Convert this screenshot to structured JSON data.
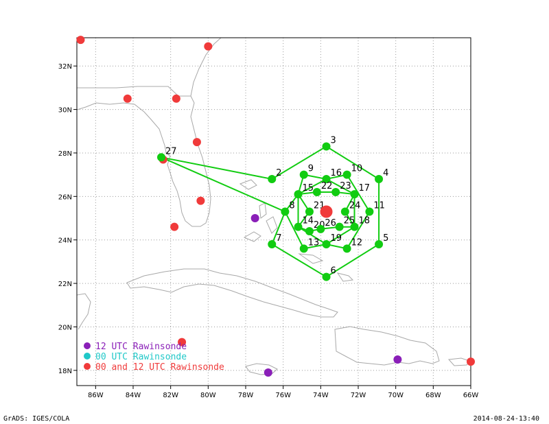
{
  "footer": {
    "left": "GrADS: IGES/COLA",
    "right": "2014-08-24-13:40"
  },
  "colors": {
    "track": "#11cc11",
    "raob_both": "#f03a3a",
    "raob_12": "#8a1fb8",
    "raob_00": "#20c8c8",
    "coast": "#a8a8a8",
    "grid": "#9a9a9a"
  },
  "map": {
    "lon_range": [
      -87.0,
      -66.0
    ],
    "lat_range": [
      17.3,
      33.3
    ],
    "x_ticks": [
      {
        "lon": -86,
        "label": "86W"
      },
      {
        "lon": -84,
        "label": "84W"
      },
      {
        "lon": -82,
        "label": "82W"
      },
      {
        "lon": -80,
        "label": "80W"
      },
      {
        "lon": -78,
        "label": "78W"
      },
      {
        "lon": -76,
        "label": "76W"
      },
      {
        "lon": -74,
        "label": "74W"
      },
      {
        "lon": -72,
        "label": "72W"
      },
      {
        "lon": -70,
        "label": "70W"
      },
      {
        "lon": -68,
        "label": "68W"
      },
      {
        "lon": -66,
        "label": "66W"
      }
    ],
    "y_ticks": [
      {
        "lat": 18,
        "label": "18N"
      },
      {
        "lat": 20,
        "label": "20N"
      },
      {
        "lat": 22,
        "label": "22N"
      },
      {
        "lat": 24,
        "label": "24N"
      },
      {
        "lat": 26,
        "label": "26N"
      },
      {
        "lat": 28,
        "label": "28N"
      },
      {
        "lat": 30,
        "label": "30N"
      },
      {
        "lat": 32,
        "label": "32N"
      }
    ]
  },
  "legend": [
    {
      "label": "12 UTC Rawinsonde",
      "color": "#8a1fb8"
    },
    {
      "label": "00 UTC Rawinsonde",
      "color": "#20c8c8"
    },
    {
      "label": "00 and 12 UTC Rawinsonde",
      "color": "#f03a3a"
    }
  ],
  "storm_center": {
    "lon": -73.7,
    "lat": 25.3
  },
  "drop_points": [
    {
      "id": "2",
      "lon": -76.6,
      "lat": 26.8
    },
    {
      "id": "3",
      "lon": -73.7,
      "lat": 28.3
    },
    {
      "id": "4",
      "lon": -70.9,
      "lat": 26.8
    },
    {
      "id": "5",
      "lon": -70.9,
      "lat": 23.8
    },
    {
      "id": "6",
      "lon": -73.7,
      "lat": 22.3
    },
    {
      "id": "7",
      "lon": -76.6,
      "lat": 23.8
    },
    {
      "id": "8",
      "lon": -75.9,
      "lat": 25.3
    },
    {
      "id": "9",
      "lon": -74.9,
      "lat": 27.0
    },
    {
      "id": "10",
      "lon": -72.6,
      "lat": 27.0
    },
    {
      "id": "11",
      "lon": -71.4,
      "lat": 25.3
    },
    {
      "id": "12",
      "lon": -72.6,
      "lat": 23.6
    },
    {
      "id": "13",
      "lon": -74.9,
      "lat": 23.6
    },
    {
      "id": "14",
      "lon": -75.2,
      "lat": 24.6
    },
    {
      "id": "15",
      "lon": -75.2,
      "lat": 26.1
    },
    {
      "id": "16",
      "lon": -73.7,
      "lat": 26.8
    },
    {
      "id": "17",
      "lon": -72.2,
      "lat": 26.1
    },
    {
      "id": "18",
      "lon": -72.2,
      "lat": 24.6
    },
    {
      "id": "19",
      "lon": -73.7,
      "lat": 23.8
    },
    {
      "id": "20",
      "lon": -74.6,
      "lat": 24.4
    },
    {
      "id": "21",
      "lon": -74.6,
      "lat": 25.3
    },
    {
      "id": "22",
      "lon": -74.2,
      "lat": 26.2
    },
    {
      "id": "23",
      "lon": -73.2,
      "lat": 26.2
    },
    {
      "id": "24",
      "lon": -72.7,
      "lat": 25.3
    },
    {
      "id": "25",
      "lon": -73.0,
      "lat": 24.6
    },
    {
      "id": "26",
      "lon": -74.0,
      "lat": 24.5
    },
    {
      "id": "27",
      "lon": -82.5,
      "lat": 27.8
    }
  ],
  "track_paths": [
    [
      "27",
      "2",
      "3",
      "4",
      "5",
      "6",
      "7",
      "8",
      "27"
    ],
    [
      "9",
      "16",
      "10",
      "11",
      "12",
      "19",
      "13",
      "8",
      "15",
      "9"
    ],
    [
      "15",
      "22",
      "23",
      "17",
      "24",
      "18",
      "25",
      "26",
      "20",
      "14",
      "21",
      "15"
    ],
    [
      "16",
      "17",
      "18",
      "19",
      "14",
      "15",
      "16"
    ]
  ],
  "raob_both": [
    {
      "lon": -86.8,
      "lat": 33.2
    },
    {
      "lon": -80.0,
      "lat": 32.9
    },
    {
      "lon": -84.3,
      "lat": 30.5
    },
    {
      "lon": -81.7,
      "lat": 30.5
    },
    {
      "lon": -80.6,
      "lat": 28.5
    },
    {
      "lon": -82.4,
      "lat": 27.7
    },
    {
      "lon": -80.4,
      "lat": 25.8
    },
    {
      "lon": -81.8,
      "lat": 24.6
    },
    {
      "lon": -81.4,
      "lat": 19.3
    },
    {
      "lon": -66.0,
      "lat": 18.4
    }
  ],
  "raob_12": [
    {
      "lon": -77.5,
      "lat": 25.0
    },
    {
      "lon": -76.8,
      "lat": 17.9
    },
    {
      "lon": -69.9,
      "lat": 18.5
    }
  ]
}
